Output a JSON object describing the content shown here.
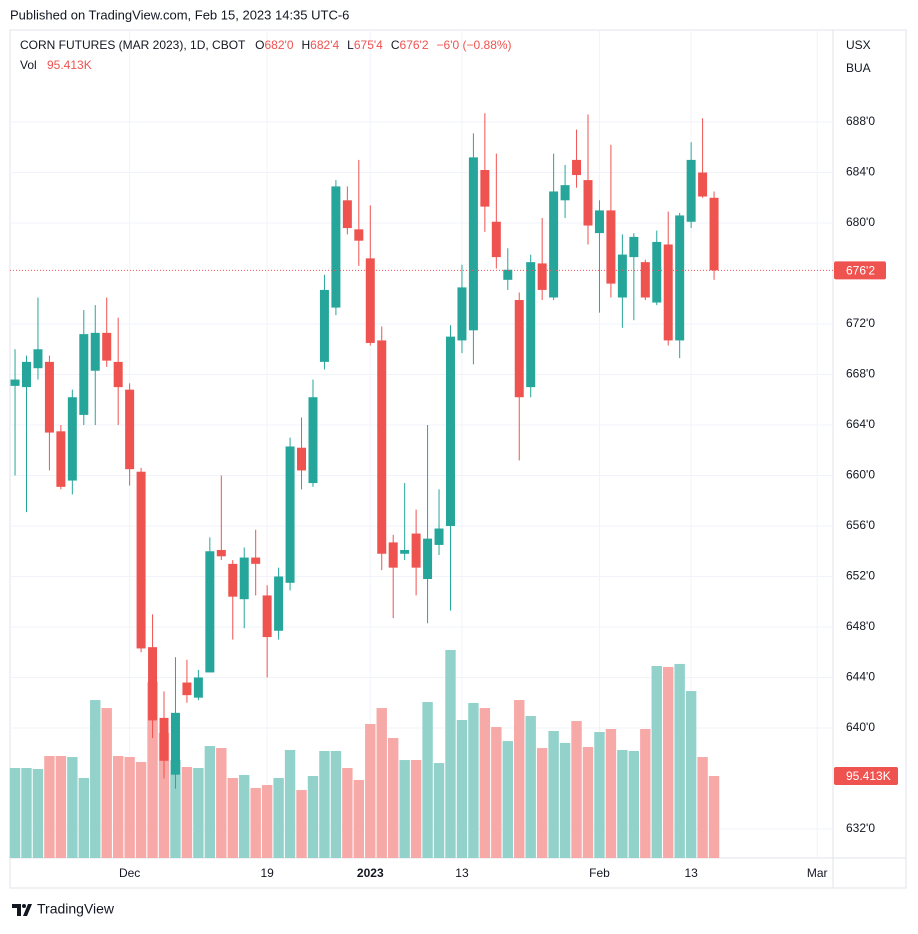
{
  "chart_data": {
    "type": "candlestick",
    "published": "Published on TradingView.com, Feb 15, 2023 14:35 UTC-6",
    "title": "CORN FUTURES (MAR 2023), 1D, CBOT",
    "legend_ohlc": [
      {
        "letter": "O",
        "value": "682'0"
      },
      {
        "letter": "H",
        "value": "682'4"
      },
      {
        "letter": "L",
        "value": "675'4"
      },
      {
        "letter": "C",
        "value": "676'2"
      }
    ],
    "change": "−6'0 (−0.88%)",
    "volume_title": "Vol",
    "volume_label": "95.413K",
    "currency": "USX",
    "unit": "BUA",
    "brand": "TradingView",
    "up_color": "#26a69a",
    "down_color": "#ef5350",
    "up_volume_color": "#92d2cb",
    "down_volume_color": "#f7a9a7",
    "grid": true,
    "ylim": [
      629.7,
      695.29
    ],
    "yticks": [
      {
        "value": 688,
        "label": "688'0"
      },
      {
        "value": 684,
        "label": "684'0"
      },
      {
        "value": 680,
        "label": "680'0"
      },
      {
        "value": 672,
        "label": "672'0"
      },
      {
        "value": 668,
        "label": "668'0"
      },
      {
        "value": 664,
        "label": "664'0"
      },
      {
        "value": 660,
        "label": "660'0"
      },
      {
        "value": 656,
        "label": "656'0"
      },
      {
        "value": 652,
        "label": "652'0"
      },
      {
        "value": 648,
        "label": "648'0"
      },
      {
        "value": 644,
        "label": "644'0"
      },
      {
        "value": 640,
        "label": "640'0"
      },
      {
        "value": 632,
        "label": "632'0"
      }
    ],
    "xlim": [
      -0.44,
      71.38
    ],
    "xticks": [
      {
        "value": 10,
        "label": "Dec"
      },
      {
        "value": 22,
        "label": "19"
      },
      {
        "value": 31,
        "label": "2023"
      },
      {
        "value": 39,
        "label": "13"
      },
      {
        "value": 51,
        "label": "Feb"
      },
      {
        "value": 59,
        "label": "13"
      },
      {
        "value": 70,
        "label": "Mar"
      }
    ],
    "last_price": {
      "value": 676.25,
      "label": "676'2"
    },
    "open": [
      667.1,
      667.0,
      668.5,
      669.0,
      663.5,
      659.6,
      664.8,
      668.3,
      671.3,
      669.0,
      666.8,
      660.3,
      646.4,
      640.8,
      636.3,
      643.6,
      642.4,
      644.4,
      654.1,
      653.0,
      650.2,
      653.5,
      650.5,
      647.7,
      651.5,
      662.2,
      659.4,
      669.0,
      673.3,
      681.8,
      679.5,
      677.2,
      670.7,
      654.7,
      653.8,
      655.4,
      651.8,
      654.5,
      656.0,
      670.7,
      671.5,
      684.2,
      680.1,
      675.5,
      673.9,
      667.0,
      676.8,
      674.1,
      681.8,
      685.0,
      683.4,
      679.2,
      681.0,
      674.1,
      677.3,
      676.9,
      673.7,
      678.3,
      670.7,
      680.1,
      684.0,
      682
    ],
    "high": [
      670.0,
      669.5,
      674.1,
      669.5,
      664.0,
      666.8,
      673.1,
      673.5,
      674.1,
      672.5,
      667.3,
      660.6,
      649.0,
      642.9,
      645.6,
      645.4,
      644.6,
      655.1,
      660.0,
      653.3,
      654.3,
      655.7,
      651.3,
      652.7,
      663.0,
      664.6,
      667.6,
      675.9,
      683.4,
      682.9,
      685.0,
      681.4,
      671.8,
      655.3,
      659.4,
      657.3,
      664.0,
      658.9,
      671.9,
      676.7,
      687.1,
      688.7,
      685.5,
      678.0,
      674.5,
      677.5,
      680.4,
      685.5,
      684.6,
      687.4,
      688.6,
      681.8,
      686.2,
      679.1,
      679.2,
      677.1,
      679.4,
      680.9,
      680.8,
      686.4,
      688.3,
      682.5
    ],
    "low": [
      660.0,
      657.1,
      667.6,
      660.4,
      658.9,
      658.5,
      664.0,
      664.0,
      668.6,
      664.0,
      659.2,
      646.0,
      639.2,
      636.0,
      635.2,
      642.0,
      642.2,
      644.4,
      653.3,
      647.0,
      647.9,
      650.5,
      644.0,
      647.0,
      650.9,
      658.9,
      659.1,
      668.4,
      672.7,
      679.1,
      676.6,
      670.3,
      652.5,
      648.7,
      653.3,
      650.5,
      648.3,
      653.7,
      649.3,
      669.7,
      668.8,
      679.3,
      676.4,
      674.7,
      661.2,
      666.2,
      673.9,
      673.9,
      680.4,
      682.8,
      678.3,
      672.9,
      674.1,
      671.7,
      672.3,
      673.9,
      673.5,
      670.3,
      669.3,
      679.6,
      682.0,
      675.5
    ],
    "close": [
      667.6,
      669.0,
      670.0,
      663.4,
      659.1,
      666.2,
      671.2,
      671.3,
      669.1,
      667.0,
      660.5,
      646.3,
      640.6,
      637.4,
      641.2,
      642.6,
      644.0,
      654.0,
      653.6,
      650.4,
      653.5,
      653.0,
      647.2,
      652.0,
      662.3,
      660.4,
      666.2,
      674.7,
      682.9,
      679.6,
      678.6,
      670.5,
      653.8,
      652.7,
      654.1,
      652.7,
      655.0,
      655.8,
      671.0,
      674.9,
      685.2,
      681.3,
      677.3,
      676.3,
      666.2,
      676.9,
      674.7,
      682.5,
      683.0,
      683.8,
      679.8,
      681.0,
      675.2,
      677.5,
      678.9,
      674.1,
      678.5,
      670.7,
      680.6,
      685.0,
      682.1,
      676.25
    ],
    "volume": [
      104700,
      104700,
      103600,
      118700,
      118700,
      117500,
      93100,
      183800,
      174500,
      118700,
      117500,
      111700,
      204800,
      145500,
      114000,
      105900,
      104700,
      130300,
      128000,
      93100,
      96600,
      81500,
      84900,
      93100,
      125700,
      79100,
      95400,
      124500,
      124500,
      104700,
      90800,
      155900,
      174500,
      139600,
      114000,
      114000,
      181500,
      110500,
      242000,
      160600,
      180400,
      174500,
      152400,
      136100,
      183800,
      165200,
      127900,
      147800,
      133900,
      159400,
      129200,
      146600,
      150100,
      125700,
      124500,
      150100,
      223400,
      222300,
      225800,
      194300,
      117500,
      95413
    ]
  }
}
